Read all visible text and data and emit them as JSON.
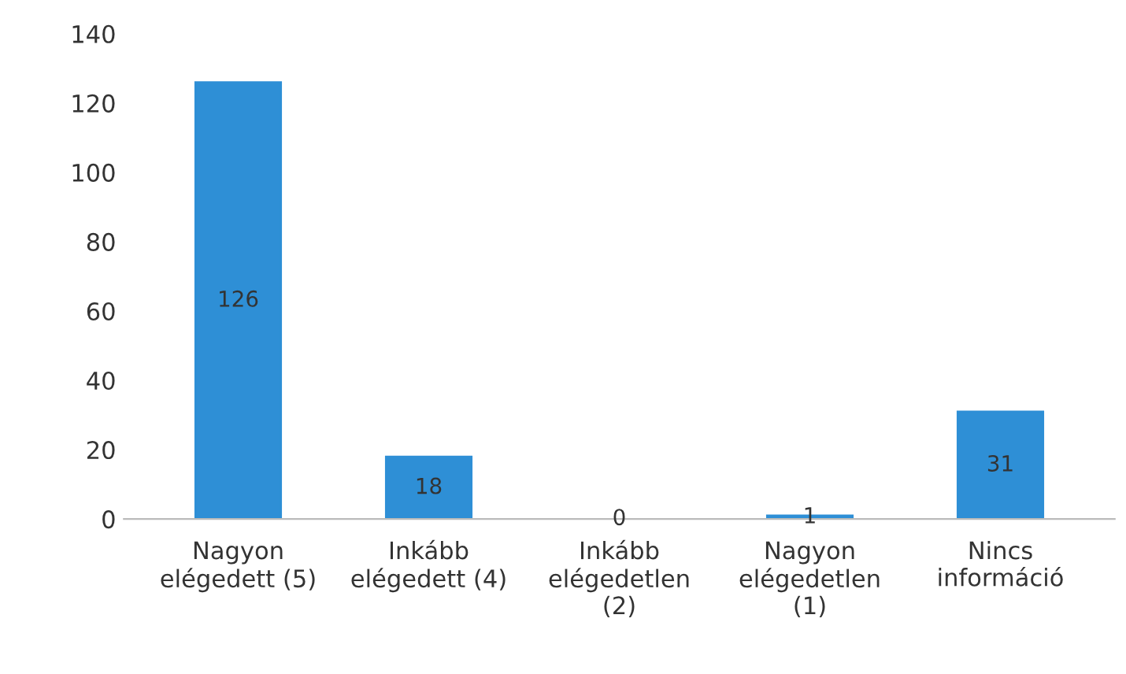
{
  "chart_data": {
    "type": "bar",
    "categories": [
      "Nagyon\nelégedett (5)",
      "Inkább\nelégedett (4)",
      "Inkább\nelégedetlen\n(2)",
      "Nagyon\nelégedetlen\n(1)",
      "Nincs\ninformáció"
    ],
    "values": [
      126,
      18,
      0,
      1,
      31
    ],
    "color": "#2e8fd6",
    "ylim": [
      0,
      140
    ],
    "yticks": [
      0,
      20,
      40,
      60,
      80,
      100,
      120,
      140
    ],
    "grid": false,
    "data_labels": true
  }
}
